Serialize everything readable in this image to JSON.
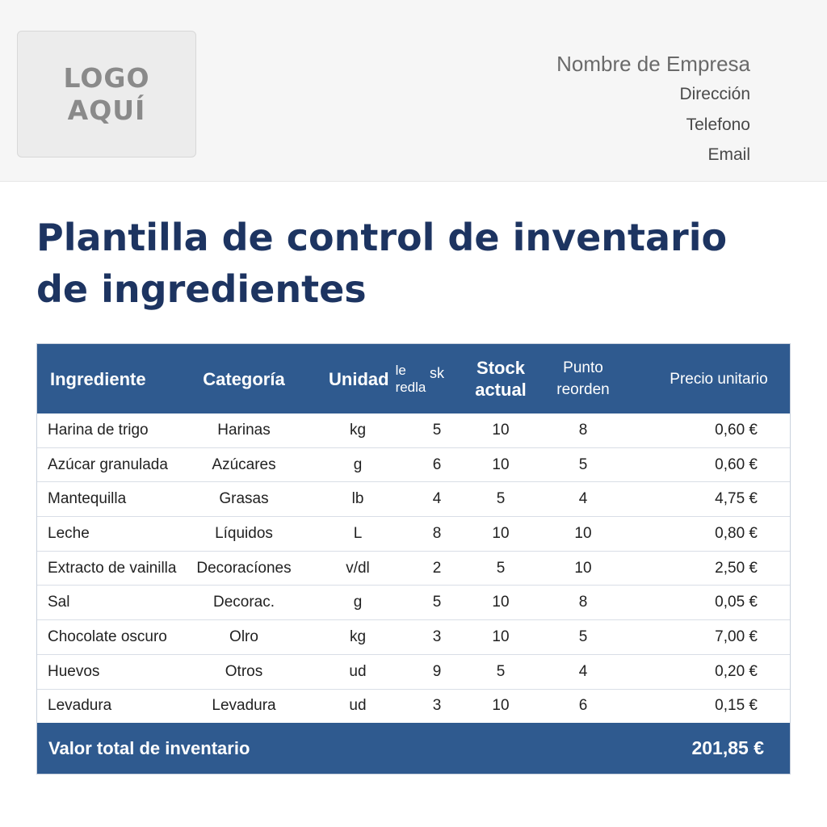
{
  "logo": {
    "line1": "LOGO",
    "line2": "AQUÍ"
  },
  "company": {
    "name": "Nombre de Empresa",
    "address": "Dirección",
    "phone": "Telefono",
    "email": "Email"
  },
  "title": "Plantilla de control de inventario de ingredientes",
  "table": {
    "headers": {
      "ingredient": "Ingrediente",
      "category": "Categoría",
      "unit": "Unidad",
      "unit_sub": "le redla",
      "extra": "sk",
      "stock": "Stock actual",
      "reorder": "Punto reorden",
      "price": "Precio unitario"
    },
    "rows": [
      {
        "ingredient": "Harina de trigo",
        "category": "Harinas",
        "unit": "kg",
        "extra": "5",
        "stock": "10",
        "reorder": "8",
        "price": "0,60 €"
      },
      {
        "ingredient": "Azúcar granulada",
        "category": "Azúcares",
        "unit": "g",
        "extra": "6",
        "stock": "10",
        "reorder": "5",
        "price": "0,60 €"
      },
      {
        "ingredient": "Mantequilla",
        "category": "Grasas",
        "unit": "lb",
        "extra": "4",
        "stock": "5",
        "reorder": "4",
        "price": "4,75 €"
      },
      {
        "ingredient": "Leche",
        "category": "Líquidos",
        "unit": "L",
        "extra": "8",
        "stock": "10",
        "reorder": "10",
        "price": "0,80 €"
      },
      {
        "ingredient": "Extracto de vainilla",
        "category": "Decoracíones",
        "unit": "v/dl",
        "extra": "2",
        "stock": "5",
        "reorder": "10",
        "price": "2,50 €"
      },
      {
        "ingredient": "Sal",
        "category": "Decorac.",
        "unit": "g",
        "extra": "5",
        "stock": "10",
        "reorder": "8",
        "price": "0,05 €"
      },
      {
        "ingredient": "Chocolate oscuro",
        "category": "Olro",
        "unit": "kg",
        "extra": "3",
        "stock": "10",
        "reorder": "5",
        "price": "7,00 €"
      },
      {
        "ingredient": "Huevos",
        "category": "Otros",
        "unit": "ud",
        "extra": "9",
        "stock": "5",
        "reorder": "4",
        "price": "0,20 €"
      },
      {
        "ingredient": "Levadura",
        "category": "Levadura",
        "unit": "ud",
        "extra": "3",
        "stock": "10",
        "reorder": "6",
        "price": "0,15 €"
      }
    ],
    "footer": {
      "label": "Valor total de inventario",
      "total": "201,85 €"
    }
  },
  "colors": {
    "header_blue": "#2f5a8f",
    "title_navy": "#1d3461"
  }
}
